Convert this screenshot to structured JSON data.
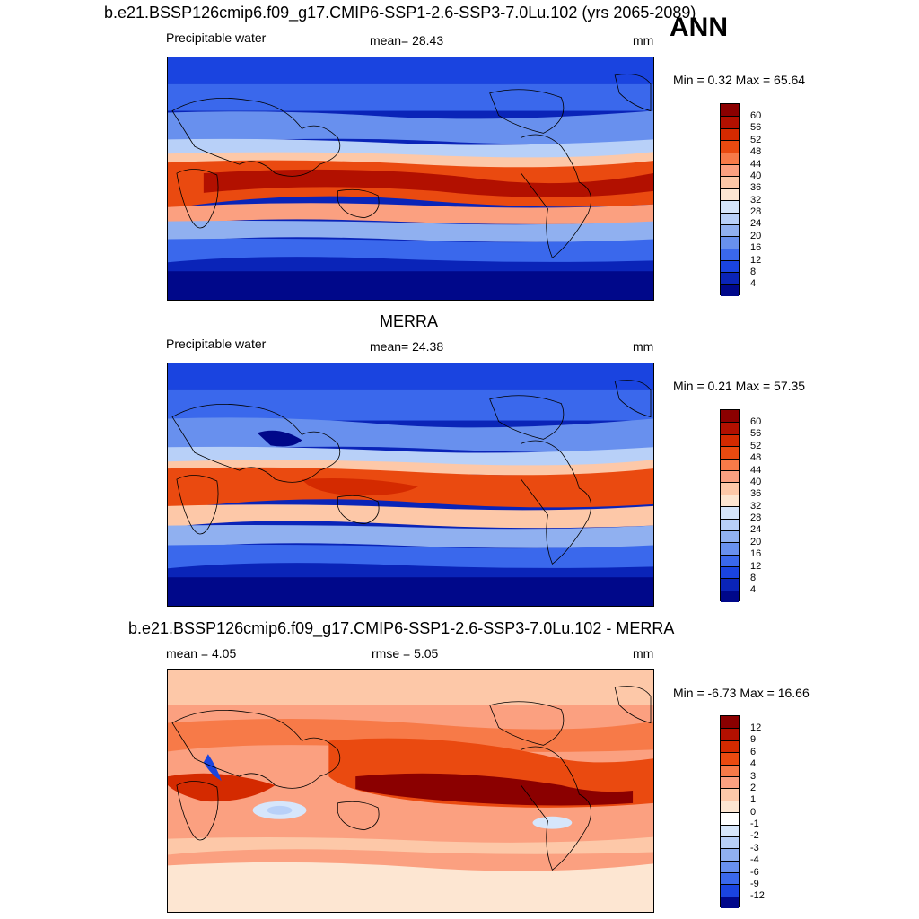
{
  "season": "ANN",
  "units": "mm",
  "panels": [
    {
      "title": "b.e21.BSSP126cmip6.f09_g17.CMIP6-SSP1-2.6-SSP3-7.0Lu.102 (yrs 2065-2089)",
      "left_label": "Precipitable water",
      "center_label": "mean=  28.43",
      "units": "mm",
      "minmax": "Min =   0.32 Max =  65.64",
      "colorbar_ticks": [
        "60",
        "56",
        "52",
        "48",
        "44",
        "40",
        "36",
        "32",
        "28",
        "24",
        "20",
        "16",
        "12",
        "8",
        "4"
      ]
    },
    {
      "title": "MERRA",
      "left_label": "Precipitable water",
      "center_label": "mean=  24.38",
      "units": "mm",
      "minmax": "Min =   0.21 Max =  57.35",
      "colorbar_ticks": [
        "60",
        "56",
        "52",
        "48",
        "44",
        "40",
        "36",
        "32",
        "28",
        "24",
        "20",
        "16",
        "12",
        "8",
        "4"
      ]
    },
    {
      "title": "b.e21.BSSP126cmip6.f09_g17.CMIP6-SSP1-2.6-SSP3-7.0Lu.102 - MERRA",
      "left_label": "mean =   4.05",
      "center_label": "rmse =   5.05",
      "units": "mm",
      "minmax": "Min =  -6.73 Max =  16.66",
      "colorbar_ticks": [
        "12",
        "9",
        "6",
        "4",
        "3",
        "2",
        "1",
        "0",
        "-1",
        "-2",
        "-3",
        "-4",
        "-6",
        "-9",
        "-12"
      ]
    }
  ],
  "colors": {
    "abs_scale": [
      "#8b0000",
      "#b21000",
      "#d42a00",
      "#ea4a10",
      "#f77a48",
      "#fba080",
      "#fdc8a8",
      "#fde6d2",
      "#d6e6fb",
      "#b8d0f8",
      "#90b0f0",
      "#6890ee",
      "#3a68ec",
      "#1a44e0",
      "#0a24b8",
      "#00088a"
    ],
    "diff_scale": [
      "#8b0000",
      "#b21000",
      "#d42a00",
      "#ea4a10",
      "#f77a48",
      "#fba080",
      "#fdc8a8",
      "#fde6d2",
      "#ffffff",
      "#d6e6fb",
      "#b8d0f8",
      "#90b0f0",
      "#6890ee",
      "#3a68ec",
      "#1a44e0",
      "#00088a"
    ],
    "coastline": "#000000"
  }
}
